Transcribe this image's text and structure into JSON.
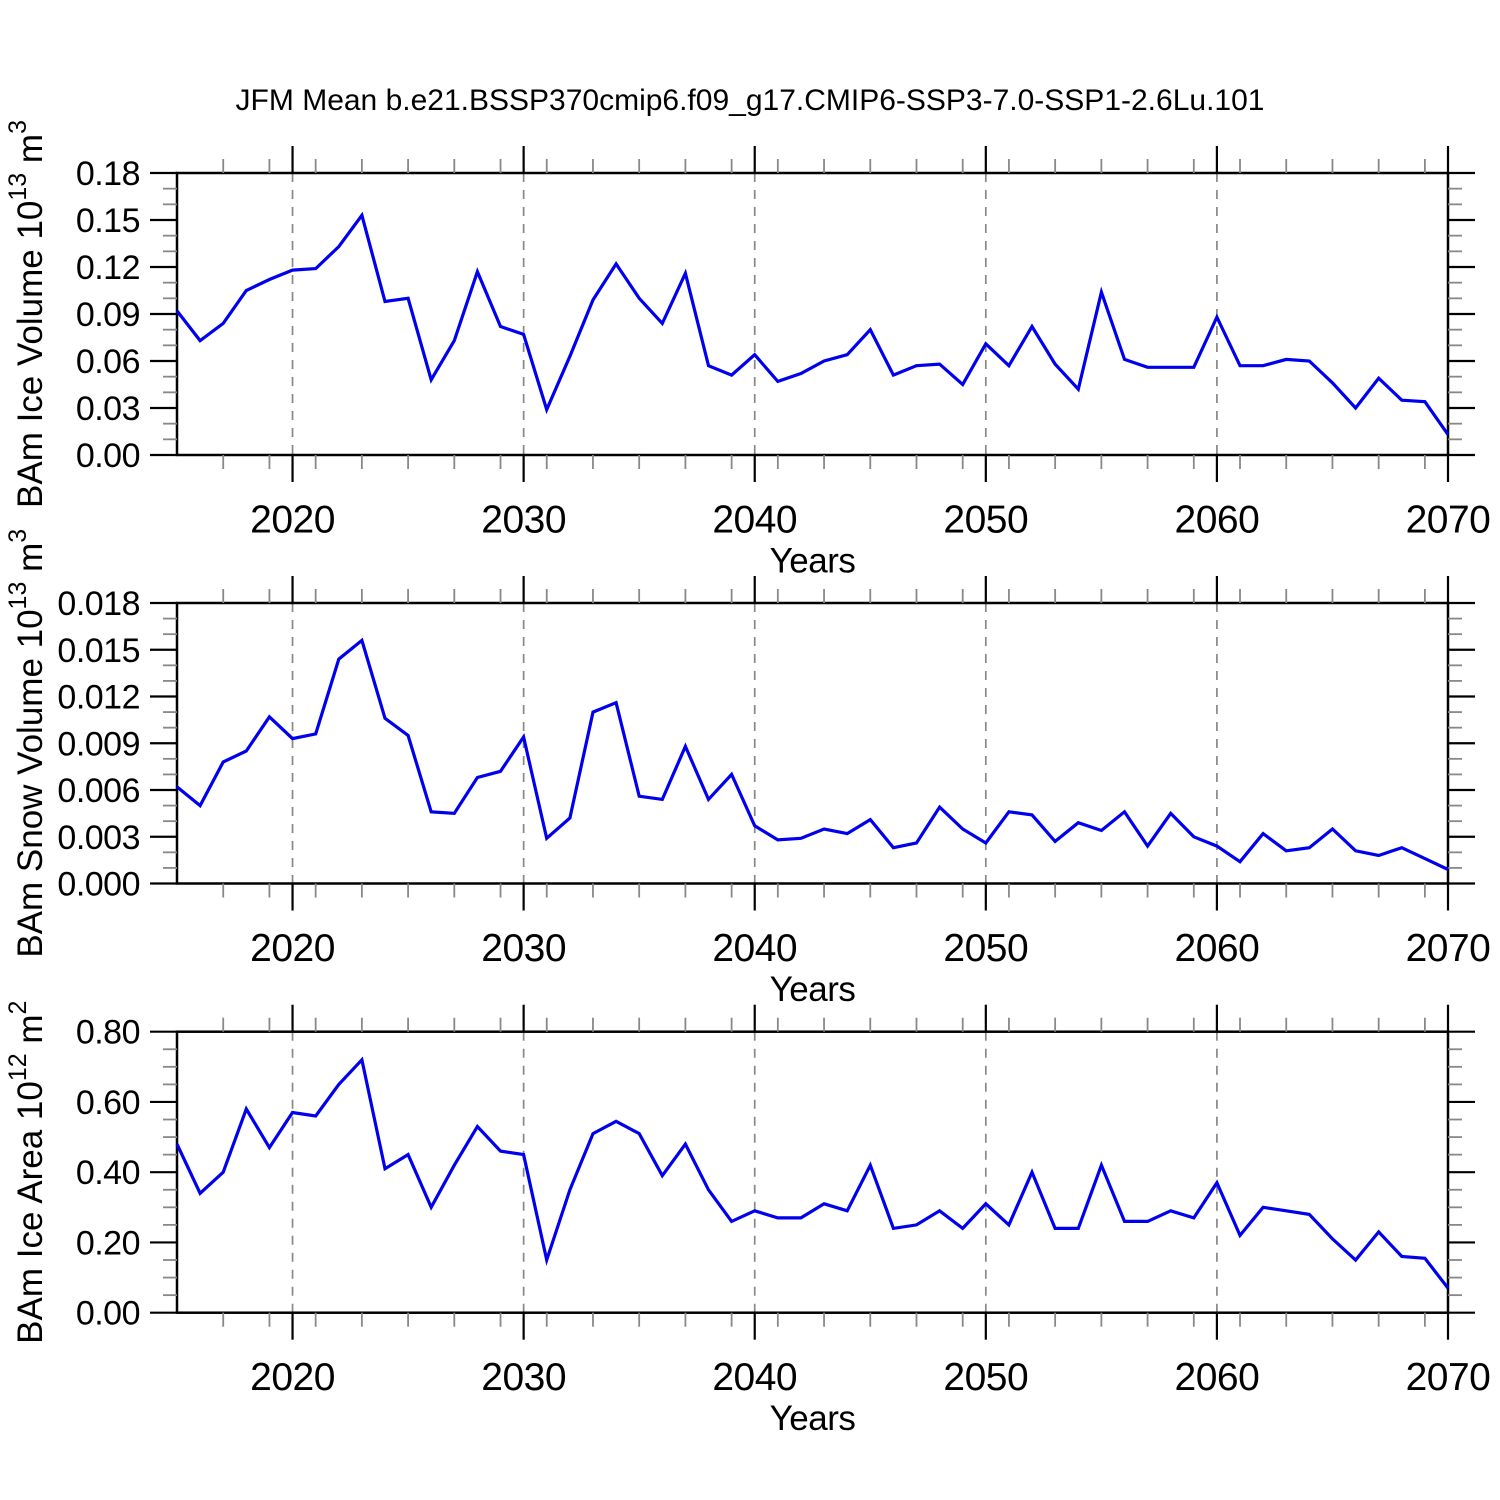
{
  "title": "JFM Mean b.e21.BSSP370cmip6.f09_g17.CMIP6-SSP3-7.0-SSP1-2.6Lu.101",
  "colors": {
    "line": "#0000ee",
    "grid": "#888888",
    "axis": "#000000",
    "minor_tick": "#888888"
  },
  "chart_data": [
    {
      "type": "line",
      "id": "bam-ice-volume",
      "ylabel_parts": [
        "BAm Ice Volume 10",
        "13",
        " m",
        "3"
      ],
      "xlabel": "Years",
      "x_range": [
        2015,
        2070
      ],
      "x_major_ticks": [
        2020,
        2030,
        2040,
        2050,
        2060,
        2070
      ],
      "x_major_tick_labels": [
        "2020",
        "2030",
        "2040",
        "2050",
        "2060",
        "2070"
      ],
      "x_minor_step": 2,
      "grid_x": [
        2020,
        2030,
        2040,
        2050,
        2060
      ],
      "ylim": [
        0,
        0.18
      ],
      "y_major_step": 0.03,
      "y_minor_step": 0.01,
      "y_tick_decimals": 2,
      "legend": "none",
      "grid": "vertical-dashed",
      "x": [
        2015,
        2016,
        2017,
        2018,
        2019,
        2020,
        2021,
        2022,
        2023,
        2024,
        2025,
        2026,
        2027,
        2028,
        2029,
        2030,
        2031,
        2032,
        2033,
        2034,
        2035,
        2036,
        2037,
        2038,
        2039,
        2040,
        2041,
        2042,
        2043,
        2044,
        2045,
        2046,
        2047,
        2048,
        2049,
        2050,
        2051,
        2052,
        2053,
        2054,
        2055,
        2056,
        2057,
        2058,
        2059,
        2060,
        2061,
        2062,
        2063,
        2064,
        2065,
        2066,
        2067,
        2068,
        2069,
        2070
      ],
      "values": [
        0.092,
        0.073,
        0.084,
        0.105,
        0.112,
        0.118,
        0.119,
        0.133,
        0.153,
        0.098,
        0.1,
        0.048,
        0.073,
        0.117,
        0.082,
        0.077,
        0.029,
        0.063,
        0.099,
        0.122,
        0.1,
        0.084,
        0.116,
        0.057,
        0.051,
        0.064,
        0.047,
        0.052,
        0.06,
        0.064,
        0.08,
        0.051,
        0.057,
        0.058,
        0.045,
        0.071,
        0.057,
        0.082,
        0.058,
        0.042,
        0.104,
        0.061,
        0.056,
        0.056,
        0.056,
        0.088,
        0.057,
        0.057,
        0.061,
        0.06,
        0.046,
        0.03,
        0.049,
        0.035,
        0.034,
        0.013
      ]
    },
    {
      "type": "line",
      "id": "bam-snow-volume",
      "ylabel_parts": [
        "BAm Snow Volume 10",
        "13",
        " m",
        "3"
      ],
      "xlabel": "Years",
      "x_range": [
        2015,
        2070
      ],
      "x_major_ticks": [
        2020,
        2030,
        2040,
        2050,
        2060,
        2070
      ],
      "x_major_tick_labels": [
        "2020",
        "2030",
        "2040",
        "2050",
        "2060",
        "2070"
      ],
      "x_minor_step": 2,
      "grid_x": [
        2020,
        2030,
        2040,
        2050,
        2060
      ],
      "ylim": [
        0,
        0.018
      ],
      "y_major_step": 0.003,
      "y_minor_step": 0.001,
      "y_tick_decimals": 3,
      "legend": "none",
      "grid": "vertical-dashed",
      "x": [
        2015,
        2016,
        2017,
        2018,
        2019,
        2020,
        2021,
        2022,
        2023,
        2024,
        2025,
        2026,
        2027,
        2028,
        2029,
        2030,
        2031,
        2032,
        2033,
        2034,
        2035,
        2036,
        2037,
        2038,
        2039,
        2040,
        2041,
        2042,
        2043,
        2044,
        2045,
        2046,
        2047,
        2048,
        2049,
        2050,
        2051,
        2052,
        2053,
        2054,
        2055,
        2056,
        2057,
        2058,
        2059,
        2060,
        2061,
        2062,
        2063,
        2064,
        2065,
        2066,
        2067,
        2068,
        2069,
        2070
      ],
      "values": [
        0.0062,
        0.005,
        0.0078,
        0.0085,
        0.0107,
        0.0093,
        0.0096,
        0.0144,
        0.0156,
        0.0106,
        0.0095,
        0.0046,
        0.0045,
        0.0068,
        0.0072,
        0.0094,
        0.0029,
        0.0042,
        0.011,
        0.0116,
        0.0056,
        0.0054,
        0.0088,
        0.0054,
        0.007,
        0.0037,
        0.0028,
        0.0029,
        0.0035,
        0.0032,
        0.0041,
        0.0023,
        0.0026,
        0.0049,
        0.0035,
        0.0026,
        0.0046,
        0.0044,
        0.0027,
        0.0039,
        0.0034,
        0.0046,
        0.0024,
        0.0045,
        0.003,
        0.0024,
        0.0014,
        0.0032,
        0.0021,
        0.0023,
        0.0035,
        0.0021,
        0.0018,
        0.0023,
        0.0016,
        0.0009
      ]
    },
    {
      "type": "line",
      "id": "bam-ice-area",
      "ylabel_parts": [
        "BAm Ice Area 10",
        "12",
        " m",
        "2"
      ],
      "xlabel": "Years",
      "x_range": [
        2015,
        2070
      ],
      "x_major_ticks": [
        2020,
        2030,
        2040,
        2050,
        2060,
        2070
      ],
      "x_major_tick_labels": [
        "2020",
        "2030",
        "2040",
        "2050",
        "2060",
        "2070"
      ],
      "x_minor_step": 2,
      "grid_x": [
        2020,
        2030,
        2040,
        2050,
        2060
      ],
      "ylim": [
        0,
        0.8
      ],
      "y_major_step": 0.2,
      "y_minor_step": 0.05,
      "y_tick_decimals": 2,
      "legend": "none",
      "grid": "vertical-dashed",
      "x": [
        2015,
        2016,
        2017,
        2018,
        2019,
        2020,
        2021,
        2022,
        2023,
        2024,
        2025,
        2026,
        2027,
        2028,
        2029,
        2030,
        2031,
        2032,
        2033,
        2034,
        2035,
        2036,
        2037,
        2038,
        2039,
        2040,
        2041,
        2042,
        2043,
        2044,
        2045,
        2046,
        2047,
        2048,
        2049,
        2050,
        2051,
        2052,
        2053,
        2054,
        2055,
        2056,
        2057,
        2058,
        2059,
        2060,
        2061,
        2062,
        2063,
        2064,
        2065,
        2066,
        2067,
        2068,
        2069,
        2070
      ],
      "values": [
        0.48,
        0.34,
        0.4,
        0.58,
        0.47,
        0.57,
        0.56,
        0.65,
        0.72,
        0.41,
        0.45,
        0.3,
        0.42,
        0.53,
        0.46,
        0.45,
        0.15,
        0.35,
        0.51,
        0.545,
        0.51,
        0.39,
        0.48,
        0.35,
        0.26,
        0.29,
        0.27,
        0.27,
        0.31,
        0.29,
        0.42,
        0.24,
        0.25,
        0.29,
        0.24,
        0.31,
        0.25,
        0.4,
        0.24,
        0.24,
        0.42,
        0.26,
        0.26,
        0.29,
        0.27,
        0.37,
        0.22,
        0.3,
        0.29,
        0.28,
        0.21,
        0.15,
        0.23,
        0.16,
        0.155,
        0.07
      ]
    }
  ]
}
